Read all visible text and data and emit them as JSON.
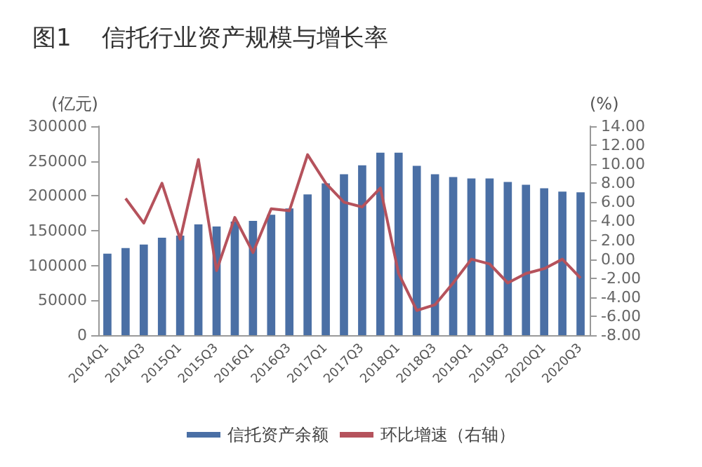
{
  "chart_data": {
    "type": "bar",
    "title": "图1    信托行业资产规模与增长率",
    "ylabel": "(亿元)",
    "y2label": "(%)",
    "categories": [
      "2014Q1",
      null,
      "2014Q3",
      null,
      "2015Q1",
      null,
      "2015Q3",
      null,
      "2016Q1",
      null,
      "2016Q3",
      null,
      "2017Q1",
      null,
      "2017Q3",
      null,
      "2018Q1",
      null,
      "2018Q3",
      null,
      "2019Q1",
      null,
      "2019Q3",
      null,
      "2020Q1",
      null,
      "2020Q3"
    ],
    "series": [
      {
        "name": "信托资产余额",
        "color": "#4a6fa5",
        "values": [
          117000,
          125000,
          130000,
          140000,
          143000,
          159000,
          156000,
          163000,
          164000,
          173000,
          182000,
          202000,
          218000,
          231000,
          244000,
          262000,
          262000,
          243000,
          231000,
          227000,
          225000,
          225000,
          220000,
          216000,
          211000,
          206000,
          205000
        ]
      },
      {
        "name": "环比增速（右轴）",
        "type": "line",
        "axis": "y2",
        "color": "#b5525c",
        "values": [
          null,
          6.4,
          3.8,
          8.0,
          2.1,
          10.5,
          -1.2,
          4.4,
          0.7,
          5.3,
          5.1,
          11.0,
          8.0,
          6.0,
          5.5,
          7.5,
          -1.5,
          -5.4,
          -4.8,
          -2.5,
          0,
          -0.5,
          -2.5,
          -1.5,
          -1.0,
          0,
          -2.0
        ]
      }
    ],
    "ylim": [
      0,
      300000
    ],
    "yticks": [
      0,
      50000,
      100000,
      150000,
      200000,
      250000,
      300000
    ],
    "y2lim": [
      -8,
      14
    ],
    "y2ticks": [
      {
        "value": -8,
        "label": "-8.00"
      },
      {
        "value": -6,
        "label": "-6.00"
      },
      {
        "value": -4,
        "label": "-4.00"
      },
      {
        "value": -2,
        "label": "-2.00"
      },
      {
        "value": 0,
        "label": "0.00"
      },
      {
        "value": 2,
        "label": "2.00"
      },
      {
        "value": 4,
        "label": "4.00"
      },
      {
        "value": 6,
        "label": "6.00"
      },
      {
        "value": 8,
        "label": "8.00"
      },
      {
        "value": 10,
        "label": "10.00"
      },
      {
        "value": 12,
        "label": "12.00"
      },
      {
        "value": 14,
        "label": "14.00"
      }
    ],
    "grid": false,
    "legend": "bottom",
    "marker": "none",
    "line_style": "solid"
  }
}
